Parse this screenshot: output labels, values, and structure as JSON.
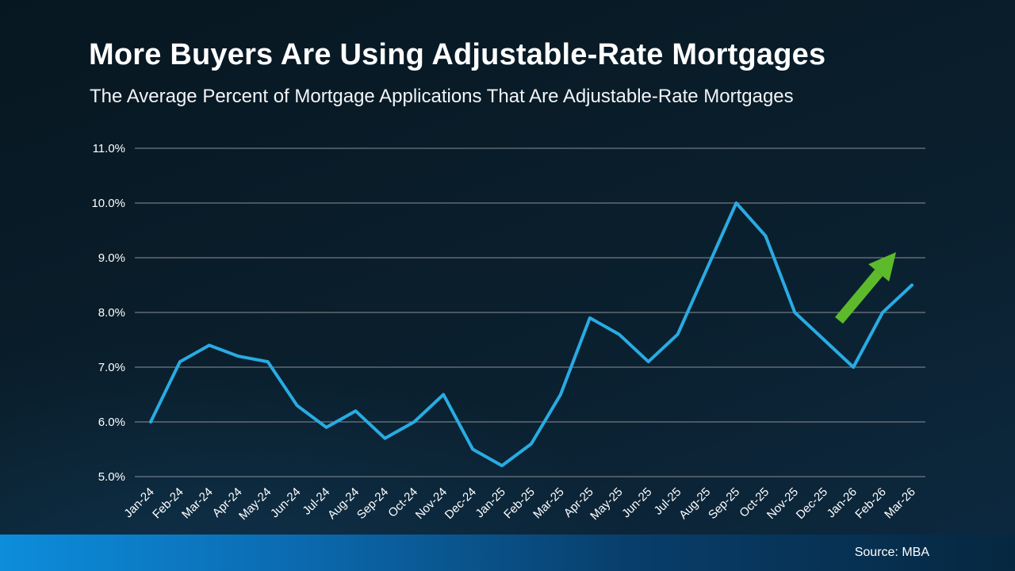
{
  "header": {
    "title": "More Buyers Are Using Adjustable-Rate Mortgages",
    "subtitle": "The Average Percent of Mortgage Applications That Are Adjustable-Rate Mortgages"
  },
  "footer": {
    "source_label": "Source: MBA"
  },
  "colors": {
    "line": "#29ABE2",
    "arrow": "#5DBB2B",
    "grid": "#8A9096",
    "axis_text": "#FFFFFF",
    "footer_bar_left": "#0D8DDB",
    "footer_bar_right": "#062740"
  },
  "chart_data": {
    "type": "line",
    "title": "The Average Percent of Mortgage Applications That Are Adjustable-Rate Mortgages",
    "xlabel": "",
    "ylabel": "",
    "ylim": [
      5.0,
      11.0
    ],
    "ytick_step": 1.0,
    "ytick_labels": [
      "5.0%",
      "6.0%",
      "7.0%",
      "8.0%",
      "9.0%",
      "10.0%",
      "11.0%"
    ],
    "grid": "horizontal",
    "legend": "none",
    "categories": [
      "Jan-24",
      "Feb-24",
      "Mar-24",
      "Apr-24",
      "May-24",
      "Jun-24",
      "Jul-24",
      "Aug-24",
      "Sep-24",
      "Oct-24",
      "Nov-24",
      "Dec-24",
      "Jan-25",
      "Feb-25",
      "Mar-25",
      "Apr-25",
      "May-25",
      "Jun-25",
      "Jul-25",
      "Aug-25",
      "Sep-25",
      "Oct-25",
      "Nov-25",
      "Dec-25",
      "Jan-26",
      "Feb-26",
      "Mar-26"
    ],
    "values": [
      6.0,
      7.1,
      7.4,
      7.2,
      7.1,
      6.3,
      5.9,
      6.2,
      5.7,
      6.0,
      6.5,
      5.5,
      5.2,
      5.6,
      6.5,
      7.9,
      7.6,
      7.1,
      7.6,
      8.8,
      10.0,
      9.4,
      8.0,
      7.5,
      7.0,
      8.0,
      8.5
    ],
    "annotations": [
      {
        "type": "arrow-up-right",
        "meaning": "upward trend",
        "color": "#5DBB2B"
      }
    ]
  }
}
